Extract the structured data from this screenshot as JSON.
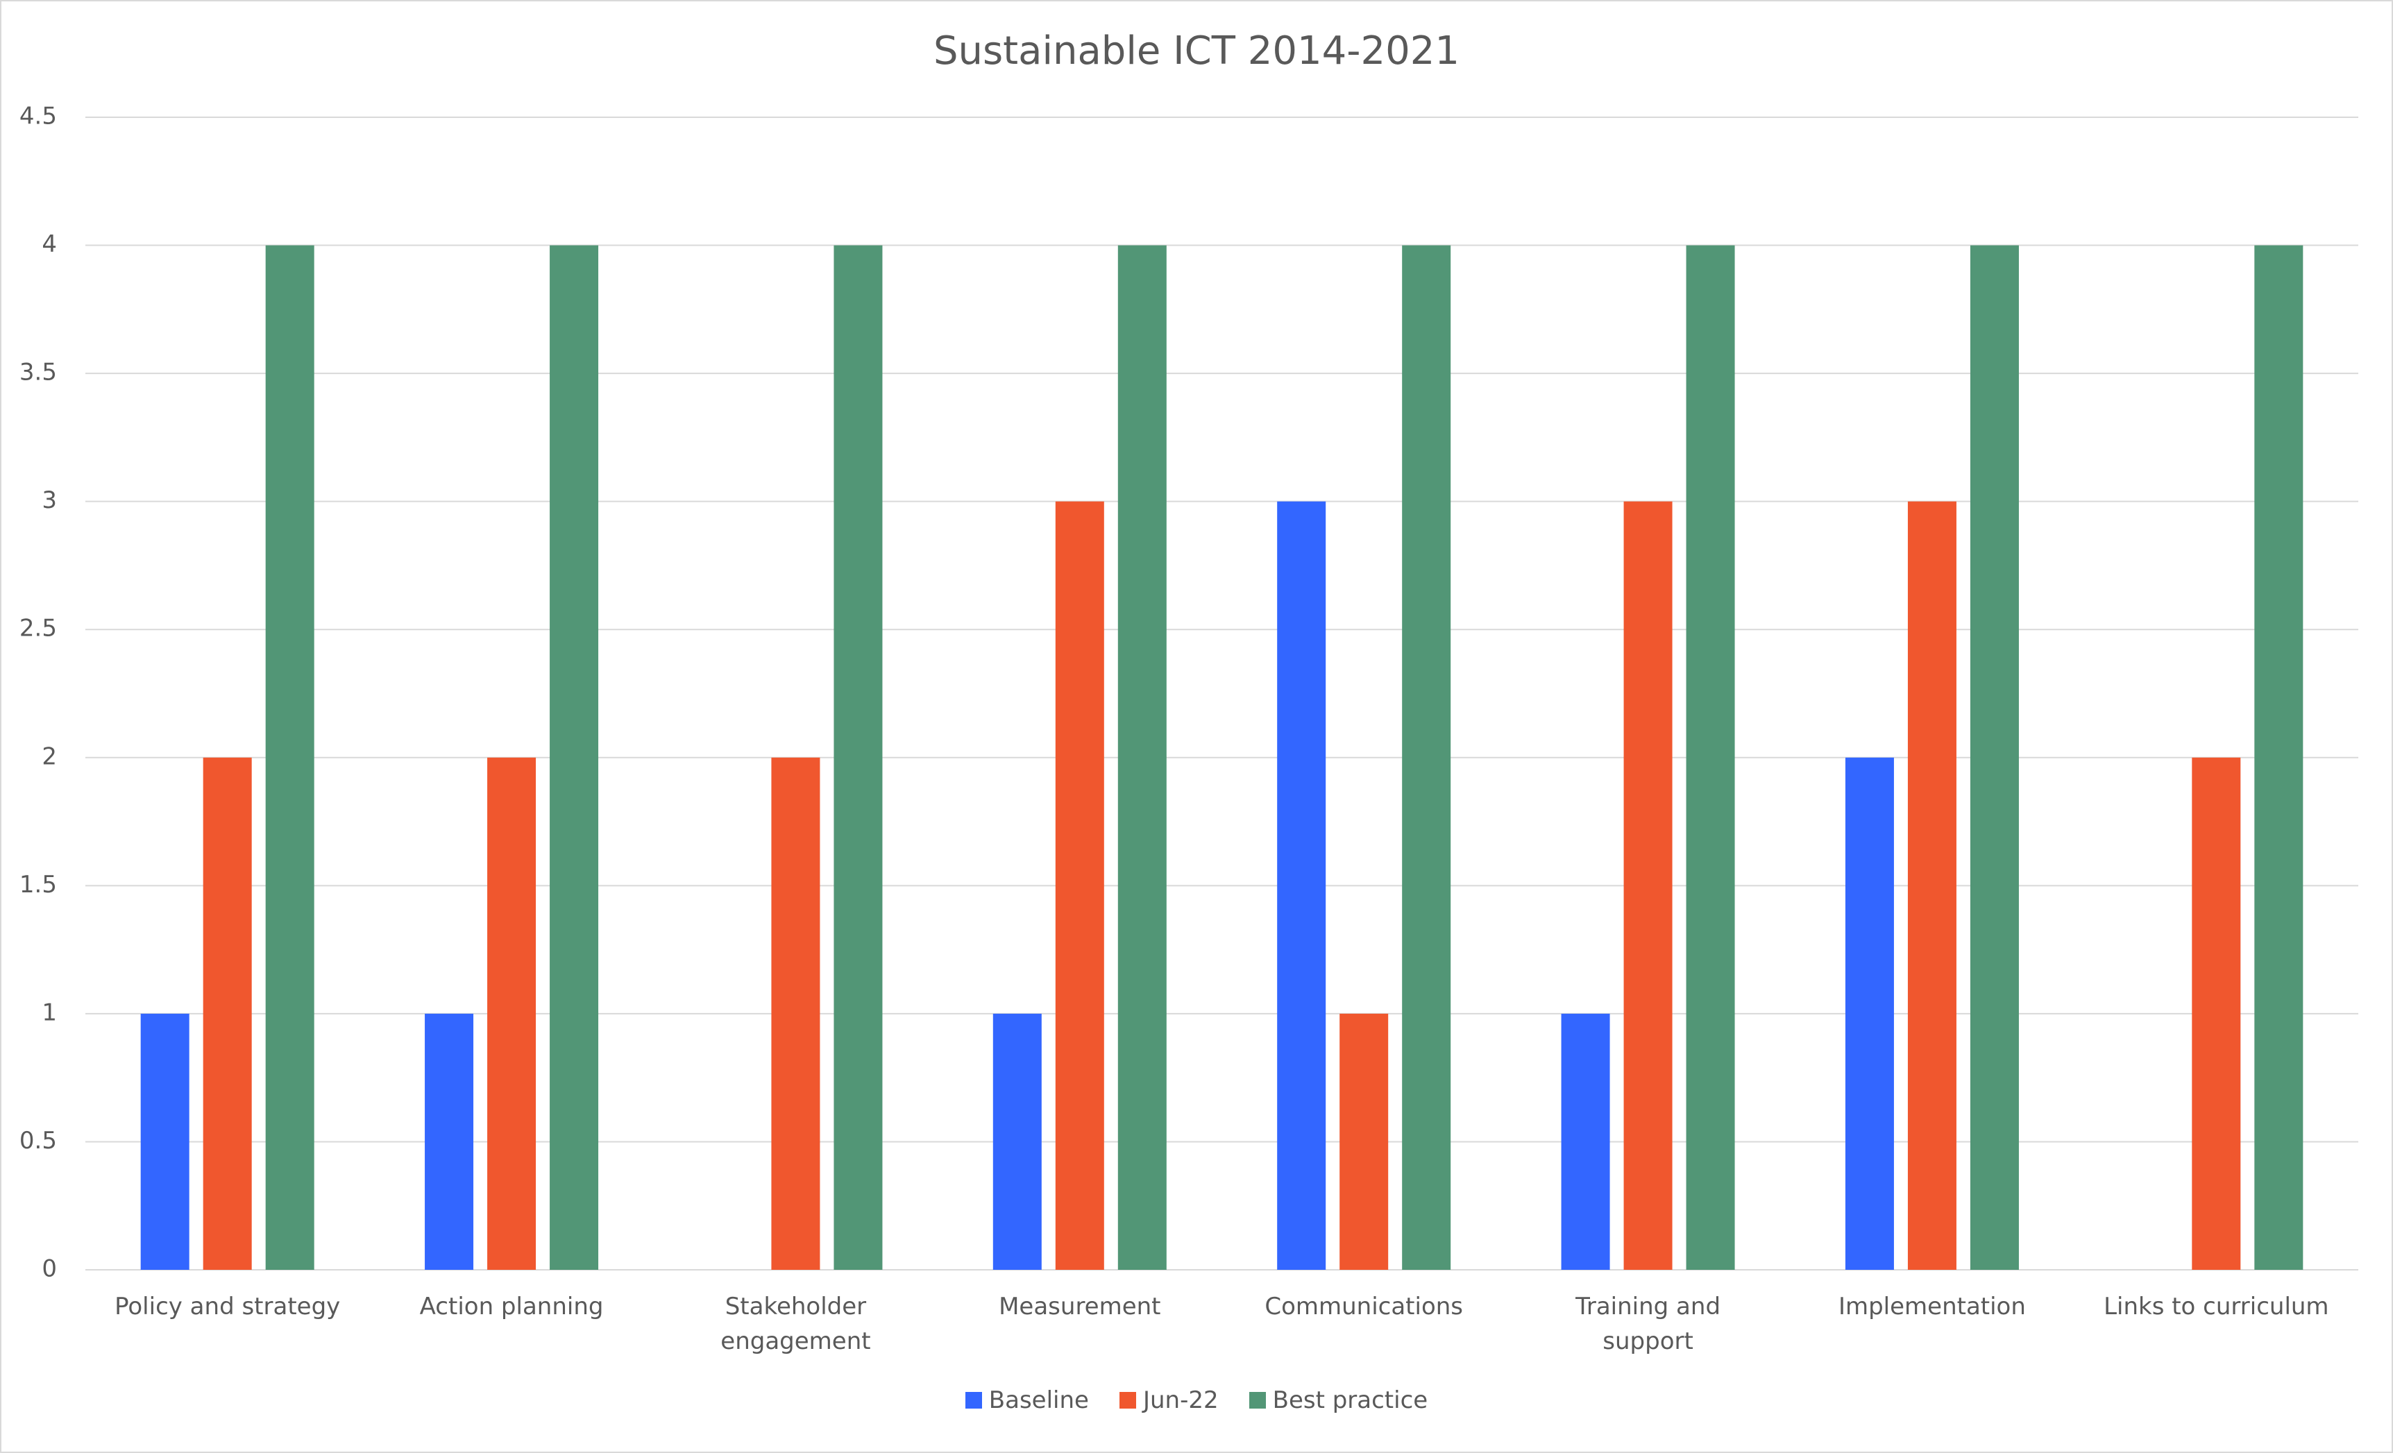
{
  "chart_data": {
    "type": "bar",
    "title": "Sustainable ICT 2014-2021",
    "categories": [
      "Policy and strategy",
      "Action planning",
      "Stakeholder engagement",
      "Measurement",
      "Communications",
      "Training and support",
      "Implementation",
      "Links to curriculum"
    ],
    "series": [
      {
        "name": "Baseline",
        "color": "#3366ff",
        "values": [
          1,
          1,
          0,
          1,
          3,
          1,
          2,
          0
        ]
      },
      {
        "name": "Jun-22",
        "color": "#f0572e",
        "values": [
          2,
          2,
          2,
          3,
          1,
          3,
          3,
          2
        ]
      },
      {
        "name": "Best practice",
        "color": "#529676",
        "values": [
          4,
          4,
          4,
          4,
          4,
          4,
          4,
          4
        ]
      }
    ],
    "ylim": [
      0,
      4.5
    ],
    "yticks": [
      0,
      0.5,
      1,
      1.5,
      2,
      2.5,
      3,
      3.5,
      4,
      4.5
    ],
    "grid": true,
    "legend": "bottom"
  }
}
